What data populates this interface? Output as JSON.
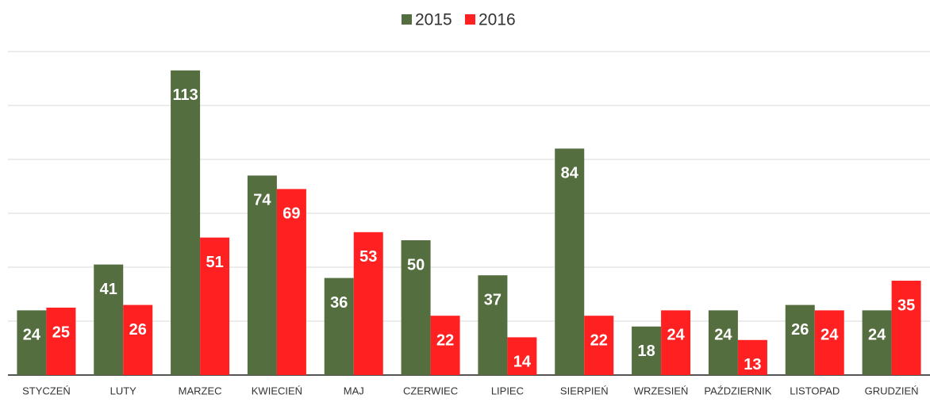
{
  "chart_data": {
    "type": "bar",
    "categories": [
      "STYCZEŃ",
      "LUTY",
      "MARZEC",
      "KWIECIEŃ",
      "MAJ",
      "CZERWIEC",
      "LIPIEC",
      "SIERPIEŃ",
      "WRZESIEŃ",
      "PAŹDZIERNIK",
      "LISTOPAD",
      "GRUDZIEŃ"
    ],
    "series": [
      {
        "name": "2015",
        "color": "#546e3f",
        "values": [
          24,
          41,
          113,
          74,
          36,
          50,
          37,
          84,
          18,
          24,
          26,
          24
        ]
      },
      {
        "name": "2016",
        "color": "#ff2121",
        "values": [
          25,
          26,
          51,
          69,
          53,
          22,
          14,
          22,
          24,
          13,
          24,
          35
        ]
      }
    ],
    "ylim": [
      0,
      120
    ],
    "yticks": [
      0,
      20,
      40,
      60,
      80,
      100,
      120
    ],
    "grid": true,
    "legend": "top"
  }
}
